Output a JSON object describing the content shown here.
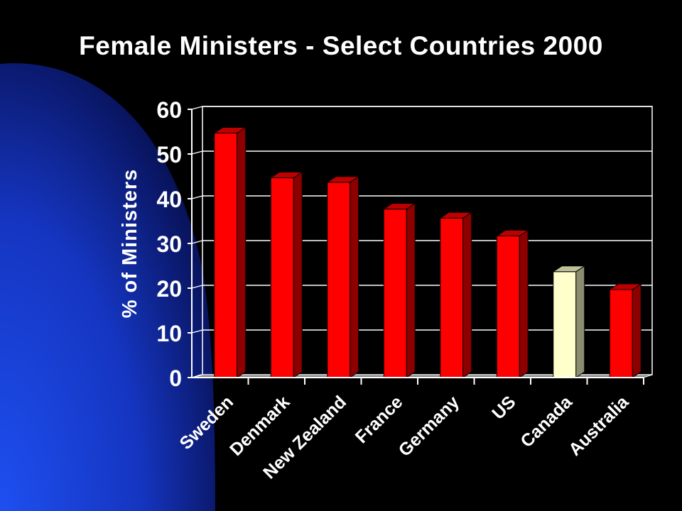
{
  "slide": {
    "background_color": "#000000",
    "accent_shape_color": "#1a3fd6"
  },
  "chart_data": {
    "type": "bar",
    "title": "Female Ministers - Select Countries 2000",
    "ylabel": "% of Ministers",
    "xlabel": "",
    "categories": [
      "Sweden",
      "Denmark",
      "New Zealand",
      "France",
      "Germany",
      "US",
      "Canada",
      "Australia"
    ],
    "values": [
      55,
      45,
      44,
      38,
      36,
      32,
      24,
      20
    ],
    "bar_colors": [
      "#ff0000",
      "#ff0000",
      "#ff0000",
      "#ff0000",
      "#ff0000",
      "#ff0000",
      "#ffffcc",
      "#ff0000"
    ],
    "ylim": [
      0,
      60
    ],
    "yticks": [
      0,
      10,
      20,
      30,
      40,
      50,
      60
    ],
    "grid": true,
    "style": "3d-bar"
  }
}
